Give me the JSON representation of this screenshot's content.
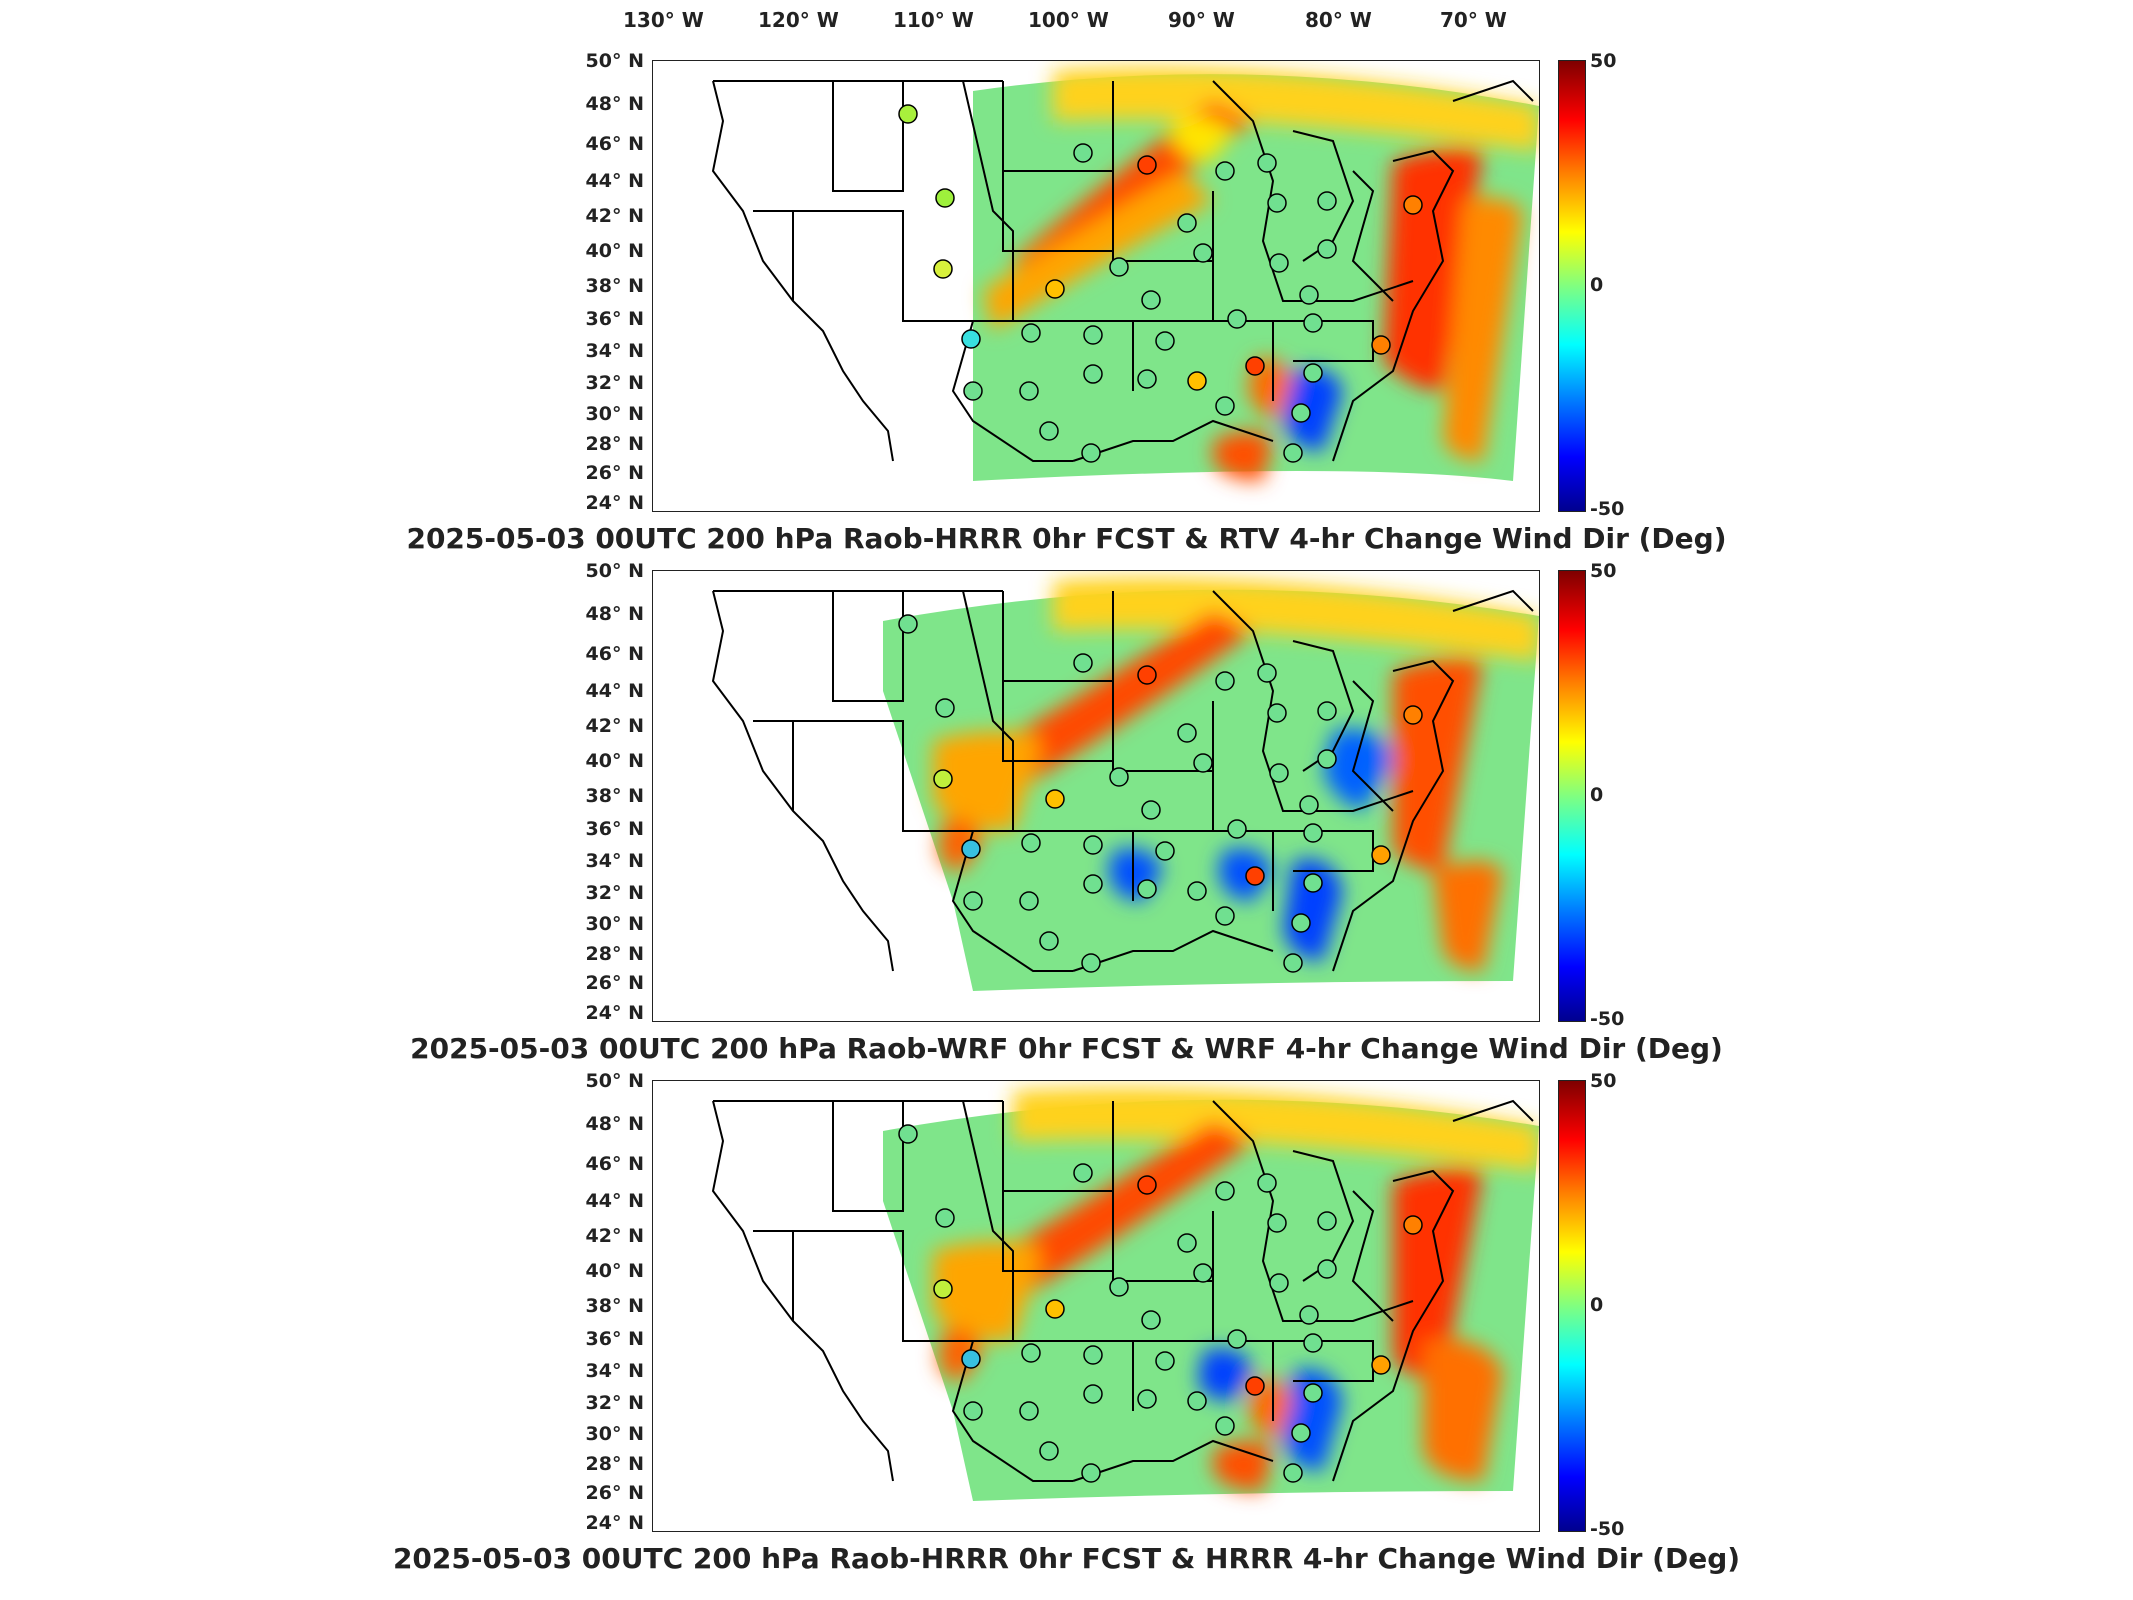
{
  "lon_labels": [
    "130° W",
    "120° W",
    "110° W",
    "100° W",
    "90° W",
    "80° W",
    "70° W"
  ],
  "lat_labels": [
    "50° N",
    "48° N",
    "46° N",
    "44° N",
    "42° N",
    "40° N",
    "38° N",
    "36° N",
    "34° N",
    "32° N",
    "30° N",
    "28° N",
    "26° N",
    "24° N"
  ],
  "colorbar": {
    "max": "50",
    "mid": "0",
    "min": "-50",
    "colors": [
      "#7f0000",
      "#ff0000",
      "#ff8000",
      "#ffff00",
      "#80ff80",
      "#00ffff",
      "#0080ff",
      "#0000ff",
      "#00008f"
    ]
  },
  "panels": [
    {
      "title": "2025-05-03 00UTC 200 hPa Raob-HRRR 0hr FCST & RTV 4-hr Change Wind Dir (Deg)"
    },
    {
      "title": "2025-05-03 00UTC 200 hPa Raob-WRF 0hr FCST & WRF 4-hr Change Wind Dir (Deg)"
    },
    {
      "title": "2025-05-03 00UTC 200 hPa Raob-HRRR 0hr FCST & HRRR 4-hr Change Wind Dir (Deg)"
    }
  ]
}
